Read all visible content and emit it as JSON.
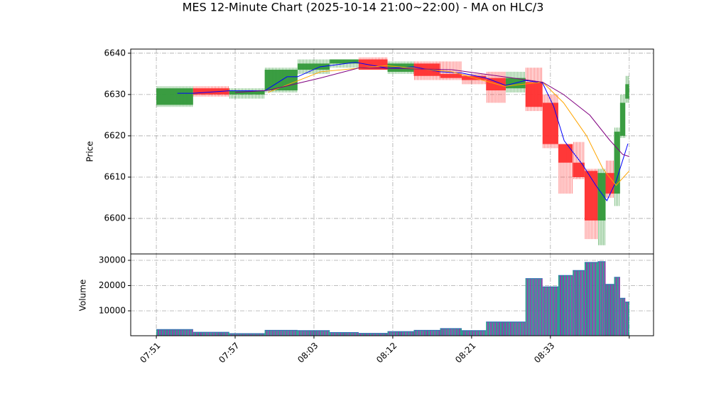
{
  "chart_data": {
    "type": "candlestick",
    "title": "MES 12-Minute Chart (2025-10-14 21:00~22:00) - MA on HLC/3",
    "ylabel": "Price",
    "volume_ylabel": "Volume",
    "up_color": "#33993a",
    "down_color": "#ff3030",
    "volume_colors": [
      "#2a9d8f",
      "#8a3fa8"
    ],
    "grid": true,
    "xlim": [
      -3.9,
      75.7
    ],
    "xticks": [
      {
        "value": 0,
        "label": "07:51"
      },
      {
        "value": 12,
        "label": "07:57"
      },
      {
        "value": 24,
        "label": "08:03"
      },
      {
        "value": 36,
        "label": "08:12"
      },
      {
        "value": 48,
        "label": "08:21"
      },
      {
        "value": 60,
        "label": "08:33"
      },
      {
        "value": 72,
        "label": null
      }
    ],
    "ylim": [
      6591.4,
      6641.0
    ],
    "yticks": [
      6600,
      6610,
      6620,
      6630,
      6640
    ],
    "volume_ylim": [
      140,
      32540
    ],
    "volume_yticks": [
      10000,
      20000,
      30000
    ],
    "candles": [
      {
        "x": 0,
        "open": 6627.5,
        "high": 6632,
        "low": 6627,
        "close": 6631.5,
        "volume": 2600
      },
      {
        "x": 5.6,
        "open": 6631.5,
        "high": 6632,
        "low": 6629.5,
        "close": 6630,
        "volume": 1500
      },
      {
        "x": 11.1,
        "open": 6630,
        "high": 6631.5,
        "low": 6629,
        "close": 6631,
        "volume": 1000
      },
      {
        "x": 16.5,
        "open": 6631,
        "high": 6636.5,
        "low": 6630.5,
        "close": 6636,
        "volume": 2300
      },
      {
        "x": 21.5,
        "open": 6636,
        "high": 6638.5,
        "low": 6635,
        "close": 6637.5,
        "volume": 2200
      },
      {
        "x": 26.4,
        "open": 6637.5,
        "high": 6638.5,
        "low": 6636.5,
        "close": 6638.5,
        "volume": 1400
      },
      {
        "x": 30.8,
        "open": 6638.5,
        "high": 6639,
        "low": 6636,
        "close": 6636,
        "volume": 1100
      },
      {
        "x": 35.2,
        "open": 6635.5,
        "high": 6638,
        "low": 6635,
        "close": 6637.5,
        "volume": 1800
      },
      {
        "x": 39.2,
        "open": 6637.5,
        "high": 6638,
        "low": 6633.5,
        "close": 6634.5,
        "volume": 2300
      },
      {
        "x": 43.2,
        "open": 6635,
        "high": 6638,
        "low": 6633.5,
        "close": 6634,
        "volume": 3000
      },
      {
        "x": 46.5,
        "open": 6634.5,
        "high": 6635,
        "low": 6632.5,
        "close": 6633.5,
        "volume": 2200
      },
      {
        "x": 50.2,
        "open": 6634,
        "high": 6635.5,
        "low": 6628,
        "close": 6631,
        "volume": 5600
      },
      {
        "x": 53.2,
        "open": 6631.5,
        "high": 6635.5,
        "low": 6630.5,
        "close": 6634,
        "volume": 5600
      },
      {
        "x": 56.2,
        "open": 6633,
        "high": 6636.5,
        "low": 6626,
        "close": 6627,
        "volume": 22800
      },
      {
        "x": 58.8,
        "open": 6628,
        "high": 6630,
        "low": 6617,
        "close": 6618,
        "volume": 19500
      },
      {
        "x": 61.2,
        "open": 6618,
        "high": 6618,
        "low": 6606,
        "close": 6613.5,
        "volume": 24000
      },
      {
        "x": 63.4,
        "open": 6613.5,
        "high": 6618.5,
        "low": 6609.5,
        "close": 6610,
        "volume": 26000
      },
      {
        "x": 65.2,
        "open": 6611.5,
        "high": 6612,
        "low": 6595,
        "close": 6599.5,
        "volume": 29200
      },
      {
        "x": 67.2,
        "open": 6599.5,
        "high": 6612,
        "low": 6593.5,
        "close": 6611,
        "volume": 29500
      },
      {
        "x": 68.4,
        "open": 6611,
        "high": 6614,
        "low": 6605,
        "close": 6606,
        "volume": 20500
      },
      {
        "x": 69.7,
        "open": 6606,
        "high": 6622,
        "low": 6603,
        "close": 6621,
        "volume": 23300
      },
      {
        "x": 70.6,
        "open": 6620,
        "high": 6630,
        "low": 6619.5,
        "close": 6628,
        "volume": 15000
      },
      {
        "x": 71.4,
        "open": 6629,
        "high": 6634.5,
        "low": 6628,
        "close": 6632.5,
        "volume": 13500
      }
    ],
    "last_x": 72,
    "series": [
      {
        "color": "#0000ff",
        "x": [
          3.2,
          5.6,
          11.1,
          16.5,
          19.9,
          21.5,
          24.9,
          30.3,
          35.2,
          39.2,
          43.2,
          46.5,
          50.2,
          53.2,
          56.2,
          58.8,
          60.5,
          62.1,
          64.9,
          67,
          68.6,
          70,
          71.8
        ],
        "values": [
          6630.3,
          6630.3,
          6630.9,
          6630.9,
          6634.3,
          6634.3,
          6636.7,
          6637.8,
          6636.4,
          6636.7,
          6635.5,
          6635.2,
          6634,
          6632.2,
          6633.4,
          6632.8,
          6627.1,
          6618.8,
          6613,
          6607.8,
          6604.3,
          6609,
          6618.1
        ]
      },
      {
        "color": "#ffa500",
        "x": [
          17,
          25,
          35,
          45,
          53,
          58.8,
          62,
          65.5,
          68,
          70,
          72
        ],
        "values": [
          6630.5,
          6635.5,
          6637,
          6635.5,
          6632,
          6633,
          6628,
          6620,
          6612,
          6608,
          6611.5
        ]
      },
      {
        "color": "#800080",
        "x": [
          12,
          17,
          25,
          31,
          45,
          52,
          58.8,
          62,
          66,
          69,
          71,
          72
        ],
        "values": [
          6630.5,
          6631,
          6634,
          6636.5,
          6636,
          6634.5,
          6633,
          6630,
          6625,
          6619,
          6615.5,
          6615
        ]
      }
    ]
  }
}
